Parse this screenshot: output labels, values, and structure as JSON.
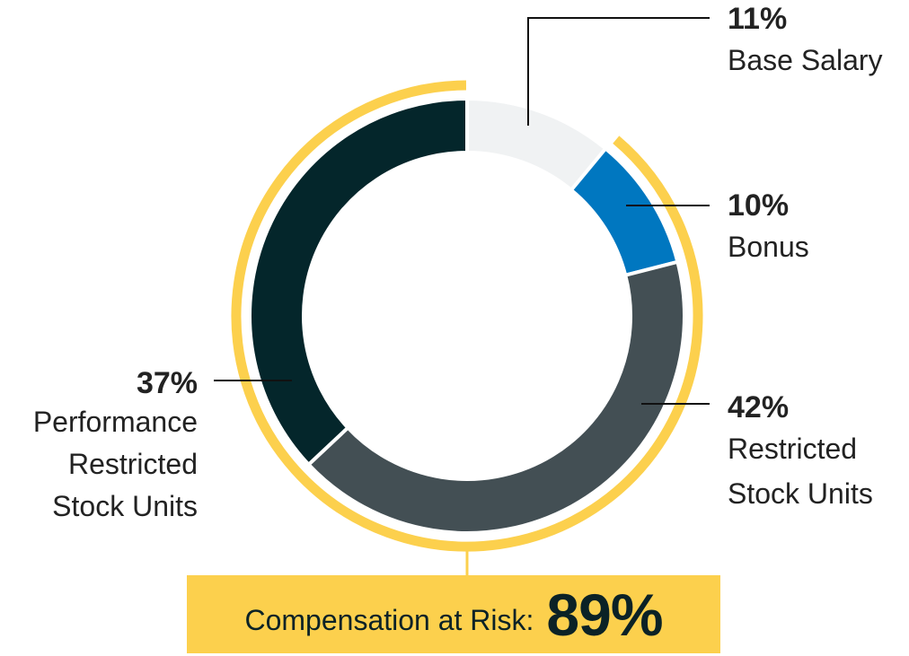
{
  "chart_data": {
    "type": "pie",
    "subtype": "donut",
    "slices": [
      {
        "label_lines": [
          "Base Salary"
        ],
        "value": 11,
        "pct_text": "11%",
        "color": "#F0F2F3",
        "at_risk": false
      },
      {
        "label_lines": [
          "Bonus"
        ],
        "value": 10,
        "pct_text": "10%",
        "color": "#0077C0",
        "at_risk": true
      },
      {
        "label_lines": [
          "Restricted",
          "Stock Units"
        ],
        "value": 42,
        "pct_text": "42%",
        "color": "#434F54",
        "at_risk": true
      },
      {
        "label_lines": [
          "Performance",
          "Restricted",
          "Stock Units"
        ],
        "value": 37,
        "pct_text": "37%",
        "color": "#04262B",
        "at_risk": true
      }
    ],
    "at_risk_arc_color": "#FCD04D",
    "callout": {
      "label": "Compensation at Risk:",
      "value": "89%",
      "background": "#FCD04D"
    }
  }
}
